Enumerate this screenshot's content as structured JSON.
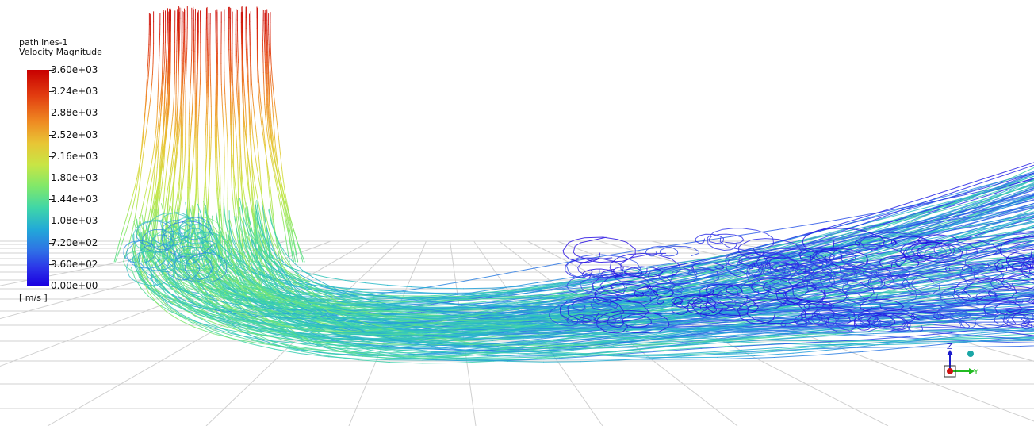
{
  "legend": {
    "name": "pathlines-1",
    "quantity": "Velocity Magnitude",
    "units": "[ m/s ]",
    "ticks": [
      "3.60e+03",
      "3.24e+03",
      "2.88e+03",
      "2.52e+03",
      "2.16e+03",
      "1.80e+03",
      "1.44e+03",
      "1.08e+03",
      "7.20e+02",
      "3.60e+02",
      "0.00e+00"
    ],
    "colors": [
      "#c80000",
      "#e23d10",
      "#ef8a22",
      "#e8c535",
      "#c8e545",
      "#80e86a",
      "#3fd6a8",
      "#22a9d8",
      "#2f6fe6",
      "#2b33e8",
      "#1a00e0"
    ]
  },
  "triad": {
    "z_label": "Z",
    "y_label": "Y",
    "z_color": "#1a1acc",
    "y_color": "#22bb22",
    "x_color": "#cc1111"
  },
  "icons": [
    "axis-triad-icon",
    "view-sphere-icon"
  ]
}
